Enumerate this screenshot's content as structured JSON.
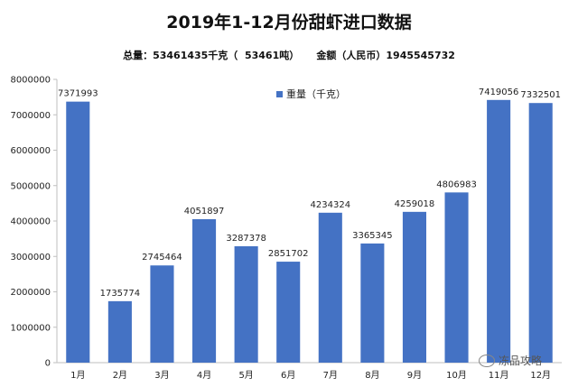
{
  "chart_data": {
    "type": "bar",
    "title": "2019年1-12月份甜虾进口数据",
    "subtitle": "总量：53461435千克（  53461吨）     金额（人民币）1945545732",
    "categories": [
      "1月",
      "2月",
      "3月",
      "4月",
      "5月",
      "6月",
      "7月",
      "8月",
      "9月",
      "10月",
      "11月",
      "12月"
    ],
    "series": [
      {
        "name": "重量（千克）",
        "values": [
          7371993,
          1735774,
          2745464,
          4051897,
          3287378,
          2851702,
          4234324,
          3365345,
          4259018,
          4806983,
          7419056,
          7332501
        ]
      }
    ],
    "ylim": [
      0,
      8000000
    ],
    "yticks": [
      "0",
      "1000000",
      "2000000",
      "3000000",
      "4000000",
      "5000000",
      "6000000",
      "7000000",
      "8000000"
    ],
    "grid": false,
    "legend_position": "top-center",
    "bar_color": "#4472C4"
  },
  "watermark": {
    "text": "冻品攻略",
    "icon": "wechat-icon"
  }
}
